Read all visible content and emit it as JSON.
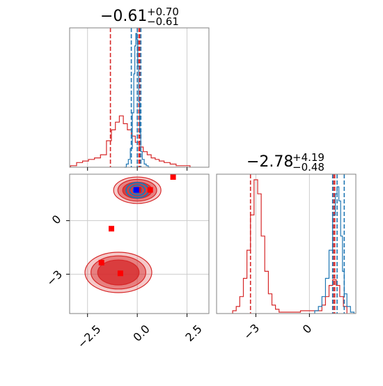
{
  "chart_data": [
    {
      "type": "histogram",
      "panel": "top-left marginal (parameter 1)",
      "title": {
        "median": "−0.61",
        "plus": "+0.70",
        "minus": "−0.61"
      },
      "xlim": [
        -3.4,
        3.6
      ],
      "grid": true,
      "series": [
        {
          "name": "",
          "color": "#d62728",
          "bins_x": [
            -3.2,
            -2.9,
            -2.6,
            -2.3,
            -2.0,
            -1.7,
            -1.4,
            -1.2,
            -1.0,
            -0.8,
            -0.6,
            -0.4,
            -0.2,
            0.0,
            0.2,
            0.4,
            0.6,
            0.8,
            1.0,
            1.2,
            1.5,
            1.8,
            2.1,
            2.5
          ],
          "counts": [
            0.01,
            0.03,
            0.04,
            0.05,
            0.06,
            0.08,
            0.17,
            0.24,
            0.29,
            0.33,
            0.28,
            0.24,
            0.2,
            0.16,
            0.13,
            0.1,
            0.08,
            0.06,
            0.05,
            0.04,
            0.03,
            0.02,
            0.01,
            0.01
          ],
          "quantile_lines": [
            -1.35,
            0.08,
            0.12
          ]
        },
        {
          "name": "",
          "color": "#1f77b4",
          "bins_x": [
            -0.6,
            -0.5,
            -0.4,
            -0.3,
            -0.2,
            -0.15,
            -0.1,
            -0.05,
            0.0,
            0.05,
            0.1,
            0.15,
            0.2,
            0.3,
            0.4,
            0.5,
            0.6
          ],
          "counts": [
            0.0,
            0.02,
            0.05,
            0.12,
            0.35,
            0.6,
            0.78,
            0.86,
            0.82,
            0.65,
            0.42,
            0.22,
            0.1,
            0.05,
            0.02,
            0.01,
            0.0
          ],
          "quantile_lines": [
            -0.3,
            0.0,
            0.18
          ]
        }
      ]
    },
    {
      "type": "scatter",
      "panel": "bottom-left 2D contour (parameter 1 vs parameter 2)",
      "xlim": [
        -3.4,
        3.6
      ],
      "ylim": [
        -5.2,
        2.6
      ],
      "x_ticks": [
        "−2.5",
        "0.0",
        "2.5"
      ],
      "y_ticks": [
        "0",
        "−3"
      ],
      "grid": true,
      "red_contour_centers": [
        {
          "x": 0.0,
          "y": 1.7
        },
        {
          "x": -0.95,
          "y": -2.9
        }
      ],
      "blue_contour_center": {
        "x": 0.0,
        "y": 1.7
      },
      "red_square_markers": [
        {
          "x": 0.05,
          "y": 1.72
        },
        {
          "x": 0.65,
          "y": 1.72
        },
        {
          "x": 1.8,
          "y": 2.6
        },
        {
          "x": -1.3,
          "y": -0.45
        },
        {
          "x": -1.8,
          "y": -2.35
        },
        {
          "x": -0.85,
          "y": -2.95
        }
      ],
      "blue_square_markers": [
        {
          "x": -0.05,
          "y": 1.72
        }
      ]
    },
    {
      "type": "histogram",
      "panel": "bottom-right marginal (parameter 2)",
      "title": {
        "median": "−2.78",
        "plus": "+4.19",
        "minus": "−0.48"
      },
      "xlim": [
        -5.2,
        2.6
      ],
      "x_ticks": [
        "−3",
        "0"
      ],
      "grid": true,
      "series": [
        {
          "name": "",
          "color": "#d62728",
          "bins_x": [
            -4.2,
            -4.0,
            -3.8,
            -3.6,
            -3.4,
            -3.2,
            -3.0,
            -2.8,
            -2.6,
            -2.4,
            -2.2,
            -2.0,
            -1.8,
            -1.6,
            0.6,
            0.8,
            1.0,
            1.2,
            1.4,
            1.6,
            1.8,
            2.0
          ],
          "counts": [
            0.02,
            0.05,
            0.12,
            0.25,
            0.45,
            0.7,
            0.95,
            0.85,
            0.55,
            0.3,
            0.14,
            0.06,
            0.03,
            0.01,
            0.02,
            0.06,
            0.12,
            0.2,
            0.24,
            0.2,
            0.12,
            0.05
          ],
          "quantile_lines": [
            -3.3,
            1.35,
            1.42
          ]
        },
        {
          "name": "",
          "color": "#1f77b4",
          "bins_x": [
            0.4,
            0.6,
            0.8,
            1.0,
            1.2,
            1.4,
            1.5,
            1.6,
            1.7,
            1.8,
            1.9,
            2.0,
            2.2,
            2.4
          ],
          "counts": [
            0.02,
            0.05,
            0.12,
            0.25,
            0.45,
            0.7,
            0.85,
            0.9,
            0.8,
            0.55,
            0.3,
            0.14,
            0.05,
            0.01
          ],
          "quantile_lines": [
            1.3,
            1.55,
            1.95
          ]
        }
      ]
    }
  ],
  "colors": {
    "red": "#d62728",
    "blue": "#1f77b4",
    "grid": "#cccccc",
    "axes": "#808080"
  }
}
